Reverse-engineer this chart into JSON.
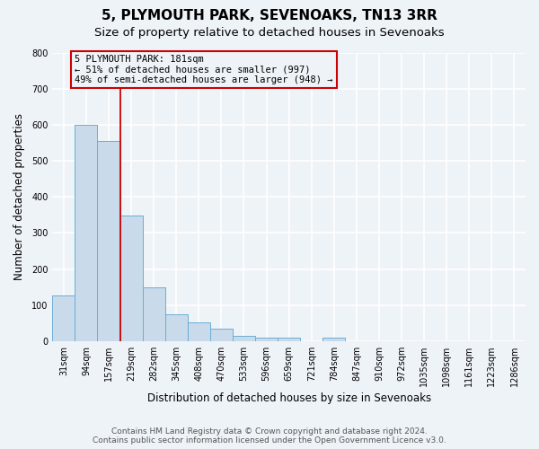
{
  "title": "5, PLYMOUTH PARK, SEVENOAKS, TN13 3RR",
  "subtitle": "Size of property relative to detached houses in Sevenoaks",
  "xlabel": "Distribution of detached houses by size in Sevenoaks",
  "ylabel": "Number of detached properties",
  "bar_labels": [
    "31sqm",
    "94sqm",
    "157sqm",
    "219sqm",
    "282sqm",
    "345sqm",
    "408sqm",
    "470sqm",
    "533sqm",
    "596sqm",
    "659sqm",
    "721sqm",
    "784sqm",
    "847sqm",
    "910sqm",
    "972sqm",
    "1035sqm",
    "1098sqm",
    "1161sqm",
    "1223sqm",
    "1286sqm"
  ],
  "bar_values": [
    127,
    600,
    555,
    348,
    148,
    75,
    52,
    33,
    14,
    8,
    10,
    0,
    8,
    0,
    0,
    0,
    0,
    0,
    0,
    0,
    0
  ],
  "bar_color": "#c9daea",
  "bar_edge_color": "#6aaed6",
  "vline_position": 2.5,
  "vline_color": "#cc0000",
  "ylim": [
    0,
    800
  ],
  "yticks": [
    0,
    100,
    200,
    300,
    400,
    500,
    600,
    700,
    800
  ],
  "annotation_text": "5 PLYMOUTH PARK: 181sqm\n← 51% of detached houses are smaller (997)\n49% of semi-detached houses are larger (948) →",
  "annotation_box_color": "#cc0000",
  "annotation_bg_color": "#eef3f8",
  "footer_line1": "Contains HM Land Registry data © Crown copyright and database right 2024.",
  "footer_line2": "Contains public sector information licensed under the Open Government Licence v3.0.",
  "background_color": "#eef3f8",
  "grid_color": "#ffffff",
  "title_fontsize": 11,
  "subtitle_fontsize": 9.5,
  "label_fontsize": 8.5,
  "tick_fontsize": 7,
  "footer_fontsize": 6.5,
  "annotation_fontsize": 7.5
}
